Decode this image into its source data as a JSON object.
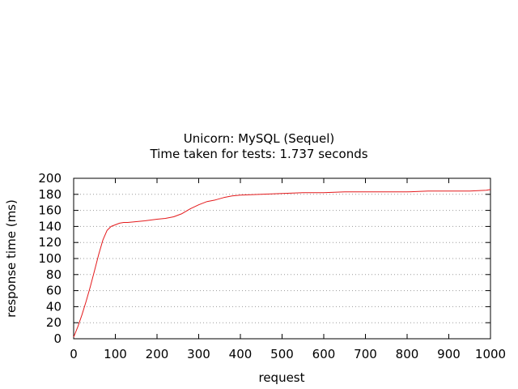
{
  "chart_data": {
    "type": "line",
    "title": "Unicorn: MySQL (Sequel)",
    "subtitle": "Time taken for tests: 1.737 seconds",
    "xlabel": "request",
    "ylabel": "response time (ms)",
    "xlim": [
      0,
      1000
    ],
    "ylim": [
      0,
      200
    ],
    "x_ticks": [
      0,
      100,
      200,
      300,
      400,
      500,
      600,
      700,
      800,
      900,
      1000
    ],
    "y_ticks": [
      0,
      20,
      40,
      60,
      80,
      100,
      120,
      140,
      160,
      180,
      200
    ],
    "grid": "horizontal-dotted",
    "line_color": "#e41a1c",
    "series": [
      {
        "x": [
          0,
          10,
          20,
          30,
          40,
          50,
          60,
          70,
          80,
          90,
          100,
          110,
          120,
          130,
          150,
          170,
          200,
          220,
          240,
          260,
          280,
          300,
          320,
          340,
          360,
          380,
          400,
          450,
          500,
          550,
          600,
          650,
          700,
          750,
          800,
          850,
          900,
          950,
          990,
          1000
        ],
        "y": [
          2,
          15,
          30,
          47,
          65,
          85,
          105,
          123,
          135,
          140,
          142,
          144,
          145,
          145,
          146,
          147,
          149,
          150,
          152,
          156,
          162,
          167,
          171,
          173,
          176,
          178,
          179,
          180,
          181,
          182,
          182,
          183,
          183,
          183,
          183,
          184,
          184,
          184,
          185,
          186
        ]
      }
    ]
  }
}
